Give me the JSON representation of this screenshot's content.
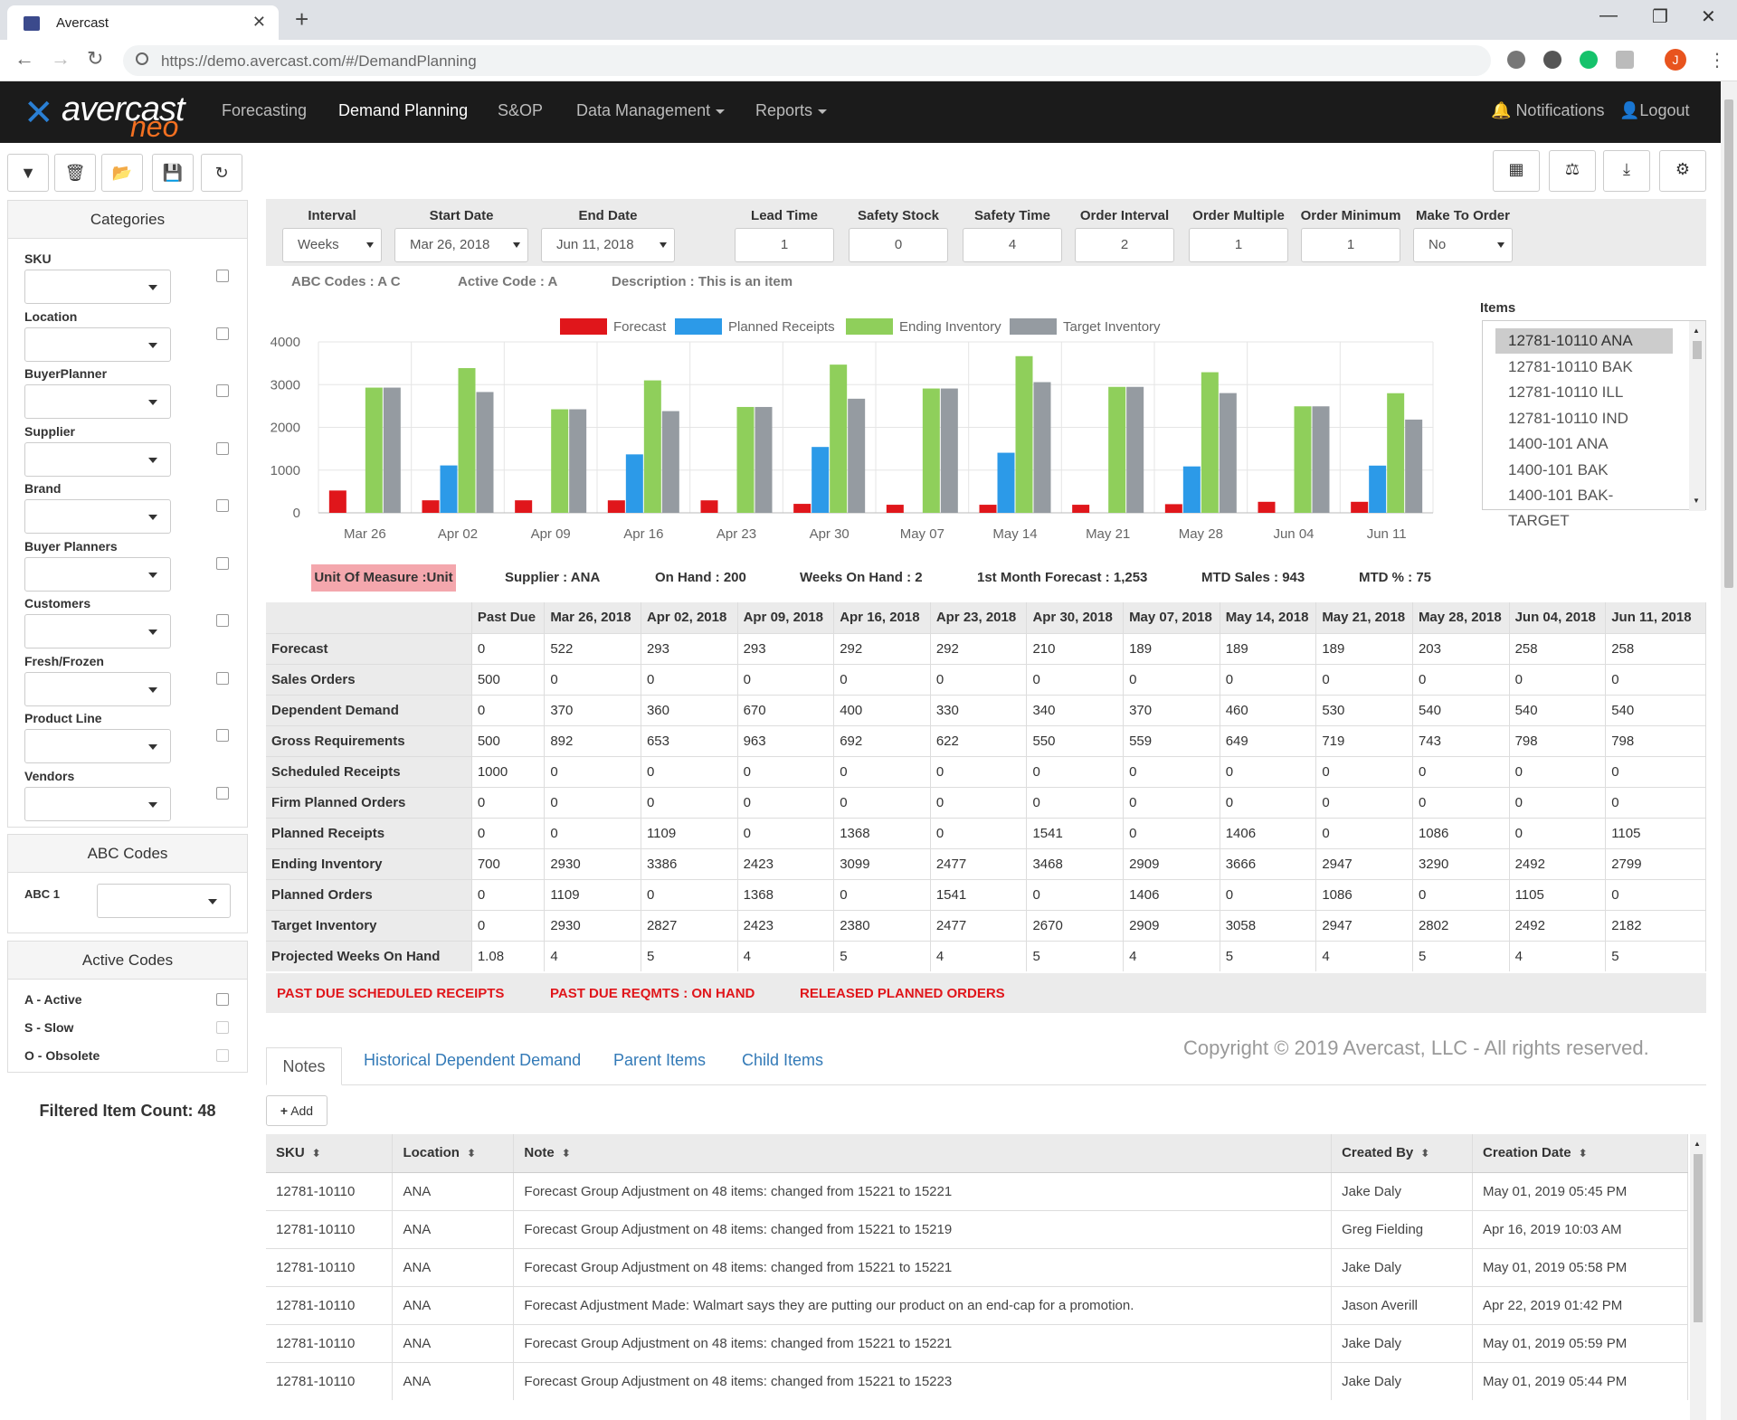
{
  "browser": {
    "tab_title": "Avercast",
    "url": "https://demo.avercast.com/#/DemandPlanning",
    "profile_initial": "J"
  },
  "navbar": {
    "logo_word": "avercast",
    "logo_sub": "neo",
    "links": [
      "Forecasting",
      "Demand Planning",
      "S&OP",
      "Data Management",
      "Reports"
    ],
    "notifications": "Notifications",
    "logout": "Logout"
  },
  "sidebar": {
    "categories_title": "Categories",
    "filters": [
      "SKU",
      "Location",
      "BuyerPlanner",
      "Supplier",
      "Brand",
      "Buyer Planners",
      "Customers",
      "Fresh/Frozen",
      "Product Line",
      "Vendors"
    ],
    "abc_title": "ABC Codes",
    "abc_label": "ABC 1",
    "active_title": "Active Codes",
    "active_codes": [
      "A - Active",
      "S - Slow",
      "O - Obsolete"
    ],
    "filtered_count": "Filtered Item Count: 48"
  },
  "params": {
    "labels": [
      "Interval",
      "Start Date",
      "End Date",
      "Lead Time",
      "Safety Stock",
      "Safety Time",
      "Order Interval",
      "Order Multiple",
      "Order Minimum",
      "Make To Order"
    ],
    "values": [
      "Weeks",
      "Mar 26, 2018",
      "Jun 11, 2018",
      "1",
      "0",
      "4",
      "2",
      "1",
      "1",
      "No"
    ]
  },
  "info": {
    "abc_label": "ABC Codes :",
    "abc_value": "A  C",
    "active_label": "Active Code :",
    "active_value": "A",
    "desc_label": "Description :",
    "desc_value": "This is an item",
    "uom": "Unit Of Measure :Unit",
    "supplier_label": "Supplier :",
    "supplier_value": "ANA",
    "onhand_label": "On Hand :",
    "onhand_value": "200",
    "woh_label": "Weeks On Hand :",
    "woh_value": "2",
    "fmf_label": "1st Month Forecast :",
    "fmf_value": "1,253",
    "mtd_label": "MTD Sales :",
    "mtd_value": "943",
    "mtdp_label": "MTD % :",
    "mtdp_value": "75"
  },
  "items": {
    "title": "Items",
    "list": [
      "12781-10110 ANA",
      "12781-10110 BAK",
      "12781-10110 ILL",
      "12781-10110 IND",
      "1400-101 ANA",
      "1400-101 BAK",
      "1400-101 BAK-TARGET"
    ]
  },
  "chart_data": {
    "type": "bar",
    "categories": [
      "Mar 26",
      "Apr 02",
      "Apr 09",
      "Apr 16",
      "Apr 23",
      "Apr 30",
      "May 07",
      "May 14",
      "May 21",
      "May 28",
      "Jun 04",
      "Jun 11"
    ],
    "ylim": [
      0,
      4000
    ],
    "yticks": [
      0,
      1000,
      2000,
      3000,
      4000
    ],
    "grid": true,
    "legend": "top",
    "series": [
      {
        "name": "Forecast",
        "color": "#e0161b",
        "values": [
          522,
          293,
          293,
          292,
          292,
          210,
          189,
          189,
          189,
          203,
          258,
          258
        ]
      },
      {
        "name": "Planned Receipts",
        "color": "#2c9ae8",
        "values": [
          0,
          1109,
          0,
          1368,
          0,
          1541,
          0,
          1406,
          0,
          1086,
          0,
          1105
        ]
      },
      {
        "name": "Ending Inventory",
        "color": "#8fcf5b",
        "values": [
          2930,
          3386,
          2423,
          3099,
          2477,
          3468,
          2909,
          3666,
          2947,
          3290,
          2492,
          2799
        ]
      },
      {
        "name": "Target Inventory",
        "color": "#959ba1",
        "values": [
          2930,
          2827,
          2423,
          2380,
          2477,
          2670,
          2909,
          3058,
          2947,
          2802,
          2492,
          2182
        ]
      }
    ]
  },
  "plan": {
    "headers": [
      "",
      "Past Due",
      "Mar 26, 2018",
      "Apr 02, 2018",
      "Apr 09, 2018",
      "Apr 16, 2018",
      "Apr 23, 2018",
      "Apr 30, 2018",
      "May 07, 2018",
      "May 14, 2018",
      "May 21, 2018",
      "May 28, 2018",
      "Jun 04, 2018",
      "Jun 11, 2018"
    ],
    "rows": [
      [
        "Forecast",
        "0",
        "522",
        "293",
        "293",
        "292",
        "292",
        "210",
        "189",
        "189",
        "189",
        "203",
        "258",
        "258"
      ],
      [
        "Sales Orders",
        "500",
        "0",
        "0",
        "0",
        "0",
        "0",
        "0",
        "0",
        "0",
        "0",
        "0",
        "0",
        "0"
      ],
      [
        "Dependent Demand",
        "0",
        "370",
        "360",
        "670",
        "400",
        "330",
        "340",
        "370",
        "460",
        "530",
        "540",
        "540",
        "540"
      ],
      [
        "Gross Requirements",
        "500",
        "892",
        "653",
        "963",
        "692",
        "622",
        "550",
        "559",
        "649",
        "719",
        "743",
        "798",
        "798"
      ],
      [
        "Scheduled Receipts",
        "1000",
        "0",
        "0",
        "0",
        "0",
        "0",
        "0",
        "0",
        "0",
        "0",
        "0",
        "0",
        "0"
      ],
      [
        "Firm Planned Orders",
        "0",
        "0",
        "0",
        "0",
        "0",
        "0",
        "0",
        "0",
        "0",
        "0",
        "0",
        "0",
        "0"
      ],
      [
        "Planned Receipts",
        "0",
        "0",
        "1109",
        "0",
        "1368",
        "0",
        "1541",
        "0",
        "1406",
        "0",
        "1086",
        "0",
        "1105"
      ],
      [
        "Ending Inventory",
        "700",
        "2930",
        "3386",
        "2423",
        "3099",
        "2477",
        "3468",
        "2909",
        "3666",
        "2947",
        "3290",
        "2492",
        "2799"
      ],
      [
        "Planned Orders",
        "0",
        "1109",
        "0",
        "1368",
        "0",
        "1541",
        "0",
        "1406",
        "0",
        "1086",
        "0",
        "1105",
        "0"
      ],
      [
        "Target Inventory",
        "0",
        "2930",
        "2827",
        "2423",
        "2380",
        "2477",
        "2670",
        "2909",
        "3058",
        "2947",
        "2802",
        "2492",
        "2182"
      ],
      [
        "Projected Weeks On Hand",
        "1.08",
        "4",
        "5",
        "4",
        "5",
        "4",
        "5",
        "4",
        "5",
        "4",
        "5",
        "4",
        "5"
      ]
    ],
    "alerts": [
      "PAST DUE SCHEDULED RECEIPTS",
      "PAST DUE REQMTS : ON HAND",
      "RELEASED PLANNED ORDERS"
    ]
  },
  "copyright": "Copyright © 2019 Avercast, LLC - All rights reserved.",
  "tabs": [
    "Notes",
    "Historical Dependent Demand",
    "Parent Items",
    "Child Items"
  ],
  "notes": {
    "add_label": "Add",
    "headers": [
      "SKU",
      "Location",
      "Note",
      "Created By",
      "Creation Date"
    ],
    "rows": [
      [
        "12781-10110",
        "ANA",
        "Forecast Group Adjustment on 48 items: changed from 15221 to 15221",
        "Jake Daly",
        "May 01, 2019 05:45 PM"
      ],
      [
        "12781-10110",
        "ANA",
        "Forecast Group Adjustment on 48 items: changed from 15221 to 15219",
        "Greg Fielding",
        "Apr 16, 2019 10:03 AM"
      ],
      [
        "12781-10110",
        "ANA",
        "Forecast Group Adjustment on 48 items: changed from 15221 to 15221",
        "Jake Daly",
        "May 01, 2019 05:58 PM"
      ],
      [
        "12781-10110",
        "ANA",
        "Forecast Adjustment Made: Walmart says they are putting our product on an end-cap for a promotion.",
        "Jason Averill",
        "Apr 22, 2019 01:42 PM"
      ],
      [
        "12781-10110",
        "ANA",
        "Forecast Group Adjustment on 48 items: changed from 15221 to 15221",
        "Jake Daly",
        "May 01, 2019 05:59 PM"
      ],
      [
        "12781-10110",
        "ANA",
        "Forecast Group Adjustment on 48 items: changed from 15221 to 15223",
        "Jake Daly",
        "May 01, 2019 05:44 PM"
      ]
    ]
  }
}
